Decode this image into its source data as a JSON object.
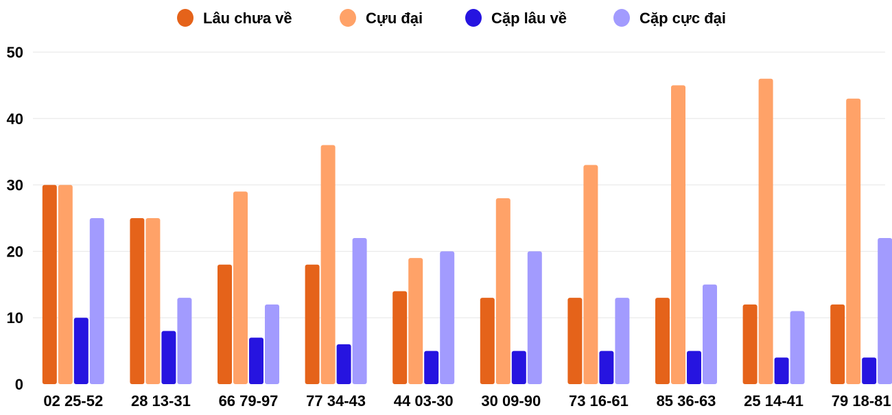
{
  "chart_data": {
    "type": "bar",
    "title": "",
    "xlabel": "",
    "ylabel": "",
    "ylim": [
      0,
      50
    ],
    "yticks": [
      0,
      10,
      20,
      30,
      40,
      50
    ],
    "grid": true,
    "legend_position": "top",
    "categories": [
      "02 25-52",
      "28 13-31",
      "66 79-97",
      "77 34-43",
      "44 03-30",
      "30 09-90",
      "73 16-61",
      "85 36-63",
      "25 14-41",
      "79 18-81"
    ],
    "series": [
      {
        "name": "Lâu chưa về",
        "color": "#e5631a",
        "values": [
          30,
          25,
          18,
          18,
          14,
          13,
          13,
          13,
          12,
          12
        ]
      },
      {
        "name": "Cựu đại",
        "color": "#ffa268",
        "values": [
          30,
          25,
          29,
          36,
          19,
          28,
          33,
          45,
          46,
          43
        ]
      },
      {
        "name": "Cặp lâu về",
        "color": "#2614e0",
        "values": [
          10,
          8,
          7,
          6,
          5,
          5,
          5,
          5,
          4,
          4
        ]
      },
      {
        "name": "Cặp cực đại",
        "color": "#a29bfe",
        "values": [
          25,
          13,
          12,
          22,
          20,
          20,
          13,
          15,
          11,
          22
        ]
      }
    ]
  }
}
